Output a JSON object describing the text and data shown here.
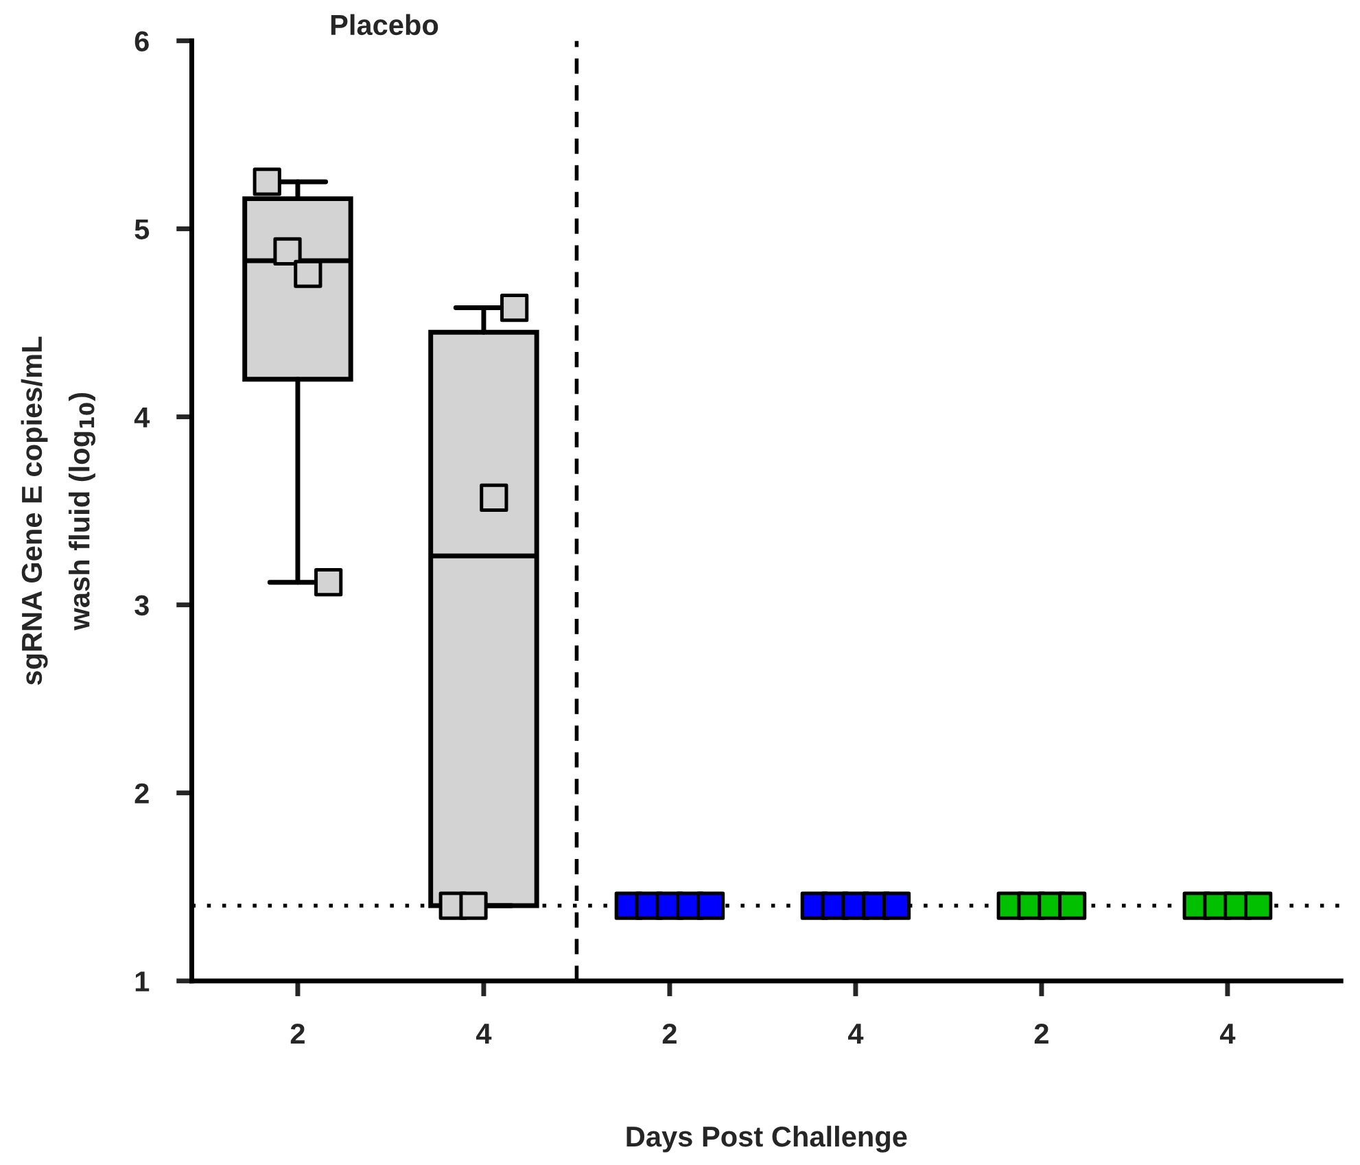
{
  "chart_data": {
    "type": "box",
    "xlabel": "Days Post Challenge",
    "ylabel": "sgRNA Gene E copies/mL\nwash fluid (log$_{10}$)",
    "annotations": [
      "Placebo"
    ],
    "categories": [
      "2",
      "4",
      "2",
      "4",
      "2",
      "4"
    ],
    "ylim": [
      1,
      6
    ],
    "yticks": [
      1,
      2,
      3,
      4,
      5,
      6
    ],
    "marker": "square",
    "ref_lines": [
      {
        "axis": "y",
        "value": 1.4,
        "line_style": "dotted",
        "color": "#000000"
      }
    ],
    "series": [
      {
        "type": "box",
        "color": "#d3d3d3",
        "boxes": [
          {
            "low": 3.12,
            "q1": 4.2,
            "median": 4.83,
            "q3": 5.16,
            "high": 5.25
          },
          {
            "low": 1.4,
            "q1": 1.4,
            "median": 3.26,
            "q3": 4.45,
            "high": 4.58
          },
          null,
          null,
          null,
          null
        ]
      },
      {
        "type": "box",
        "color": "#000000",
        "boxes": [
          null,
          null,
          {
            "low": 1.4,
            "q1": 1.4,
            "median": 1.4,
            "q3": 1.4,
            "high": 1.4
          },
          {
            "low": 1.4,
            "q1": 1.4,
            "median": 1.4,
            "q3": 1.4,
            "high": 1.4
          },
          null,
          null
        ]
      },
      {
        "type": "scatter",
        "colors": [
          "#d3d3d3",
          "#d3d3d3",
          "#0000ff",
          "#0000ff",
          "#00c000",
          "#00c000"
        ],
        "values": [
          5.25,
          1.4,
          1.4,
          1.4,
          1.4,
          1.4
        ]
      },
      {
        "type": "scatter",
        "colors": [
          "#d3d3d3",
          "#d3d3d3",
          "#0000ff",
          "#0000ff",
          "#00c000",
          "#00c000"
        ],
        "values": [
          4.88,
          1.4,
          1.4,
          1.4,
          1.4,
          1.4
        ]
      },
      {
        "type": "scatter",
        "colors": [
          "#d3d3d3",
          "#d3d3d3",
          "#0000ff",
          "#0000ff",
          "#00c000",
          "#00c000"
        ],
        "values": [
          4.76,
          3.57,
          1.4,
          1.4,
          1.4,
          1.4
        ]
      },
      {
        "type": "scatter",
        "colors": [
          "#d3d3d3",
          "#d3d3d3",
          "#0000ff",
          "#0000ff",
          "#00c000",
          "#00c000"
        ],
        "values": [
          3.12,
          4.58,
          1.4,
          1.4,
          1.4,
          1.4
        ]
      },
      {
        "type": "scatter",
        "colors": [
          "#d3d3d3",
          "#d3d3d3",
          "#0000ff",
          "#0000ff",
          "#00c000",
          "#00c000"
        ],
        "values": [
          null,
          null,
          1.4,
          1.4,
          null,
          null
        ]
      }
    ]
  }
}
